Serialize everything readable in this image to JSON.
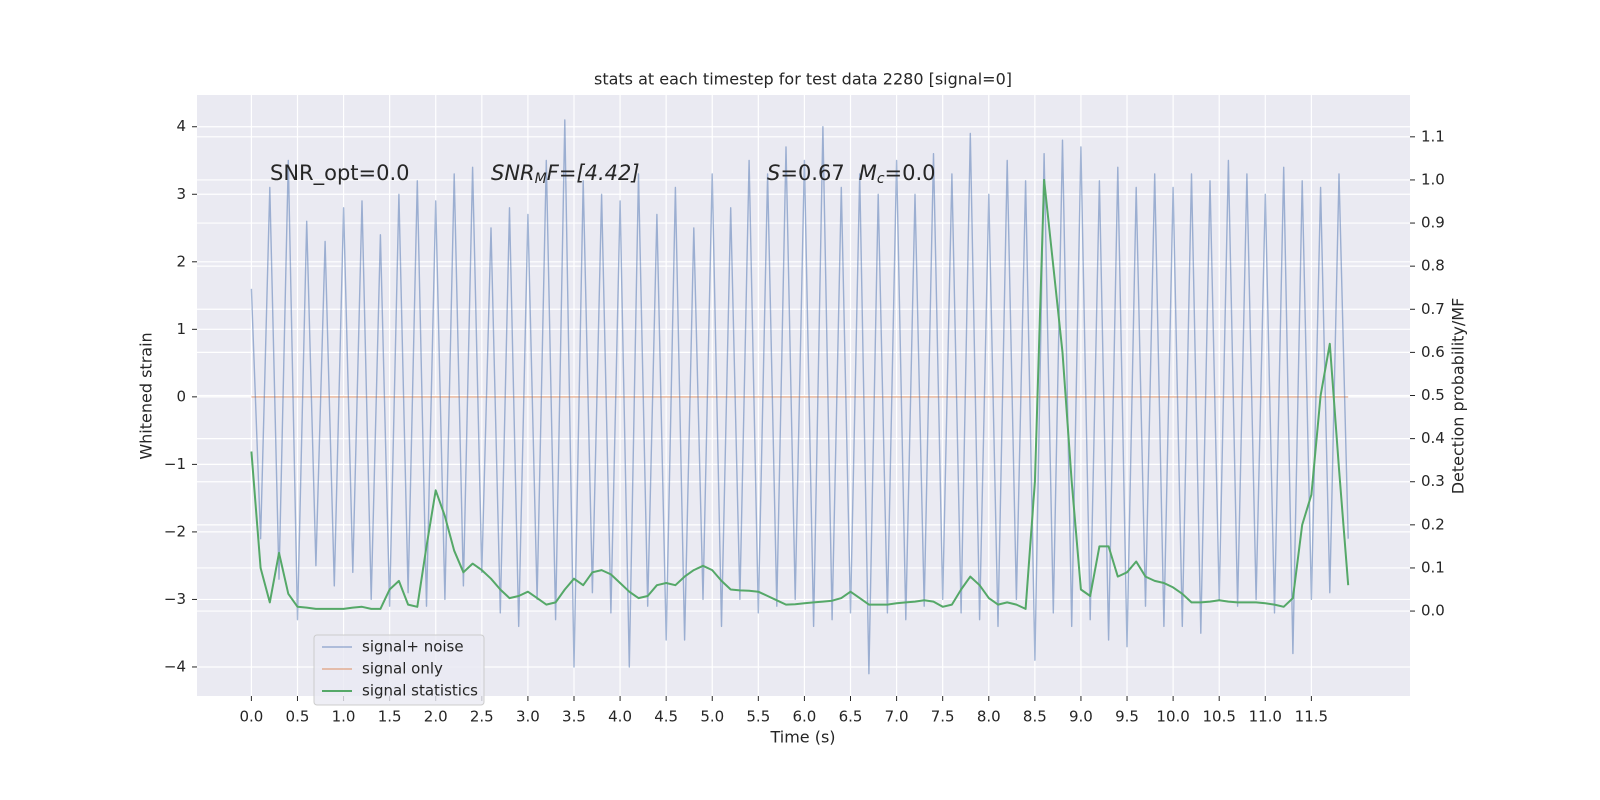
{
  "chart_data": {
    "type": "line",
    "title": "stats at each timestep for test data 2280 [signal=0]",
    "xlabel": "Time (s)",
    "ylabel": "Whitened strain",
    "y2label": "Detection probability/MF",
    "annotations": [
      [
        "SNR_opt=0.0"
      ],
      [
        "SNR",
        "M",
        "F=[4.42]"
      ],
      [
        "S",
        "=0.67",
        "M",
        "c",
        "=0.0"
      ]
    ],
    "background": "#eaeaf2",
    "grid": true,
    "legend": "lower left",
    "xlim": [
      -0.59,
      12.57
    ],
    "ylim": [
      -4.43,
      4.47
    ],
    "y2lim": [
      -0.197,
      1.197
    ],
    "xticks": [
      {
        "value": 0,
        "label": "0.0"
      },
      0.5,
      {
        "value": 1,
        "label": "1.0"
      },
      1.5,
      {
        "value": 2,
        "label": "2.0"
      },
      2.5,
      {
        "value": 3,
        "label": "3.0"
      },
      3.5,
      {
        "value": 4,
        "label": "4.0"
      },
      4.5,
      {
        "value": 5,
        "label": "5.0"
      },
      5.5,
      {
        "value": 6,
        "label": "6.0"
      },
      6.5,
      {
        "value": 7,
        "label": "7.0"
      },
      7.5,
      {
        "value": 8,
        "label": "8.0"
      },
      8.5,
      {
        "value": 9,
        "label": "9.0"
      },
      9.5,
      {
        "value": 10,
        "label": "10.0"
      },
      10.5,
      {
        "value": 11,
        "label": "11.0"
      },
      11.5
    ],
    "yticks": [
      {
        "value": -4,
        "label": "−4"
      },
      {
        "value": -3,
        "label": "−3"
      },
      {
        "value": -2,
        "label": "−2"
      },
      {
        "value": -1,
        "label": "−1"
      },
      0,
      1,
      2,
      3,
      4
    ],
    "y2ticks": [
      {
        "value": 0,
        "label": "0.0"
      },
      0.1,
      0.2,
      0.3,
      0.4,
      0.5,
      0.6,
      0.7,
      0.8,
      0.9,
      {
        "value": 1,
        "label": "1.0"
      },
      1.1
    ],
    "x": [
      0.0,
      0.1,
      0.2,
      0.3,
      0.4,
      0.5,
      0.6,
      0.7,
      0.8,
      0.9,
      1.0,
      1.1,
      1.2,
      1.3,
      1.4,
      1.5,
      1.6,
      1.7,
      1.8,
      1.9,
      2.0,
      2.1,
      2.2,
      2.3,
      2.4,
      2.5,
      2.6,
      2.7,
      2.8,
      2.9,
      3.0,
      3.1,
      3.2,
      3.3,
      3.4,
      3.5,
      3.6,
      3.7,
      3.8,
      3.9,
      4.0,
      4.1,
      4.2,
      4.3,
      4.4,
      4.5,
      4.6,
      4.7,
      4.8,
      4.9,
      5.0,
      5.1,
      5.2,
      5.3,
      5.4,
      5.5,
      5.6,
      5.7,
      5.8,
      5.9,
      6.0,
      6.1,
      6.2,
      6.3,
      6.4,
      6.5,
      6.6,
      6.7,
      6.8,
      6.9,
      7.0,
      7.1,
      7.2,
      7.3,
      7.4,
      7.5,
      7.6,
      7.7,
      7.8,
      7.9,
      8.0,
      8.1,
      8.2,
      8.3,
      8.4,
      8.5,
      8.6,
      8.7,
      8.8,
      8.9,
      9.0,
      9.1,
      9.2,
      9.3,
      9.4,
      9.5,
      9.6,
      9.7,
      9.8,
      9.9,
      10.0,
      10.1,
      10.2,
      10.3,
      10.4,
      10.5,
      10.6,
      10.7,
      10.8,
      10.9,
      11.0,
      11.1,
      11.2,
      11.3,
      11.4,
      11.5,
      11.6,
      11.7,
      11.8,
      11.9
    ],
    "series": [
      {
        "name": "signal+ noise",
        "color": "#4c72b0",
        "values": [
          1.6,
          -2.1,
          3.1,
          -2.7,
          3.5,
          -3.3,
          2.6,
          -2.5,
          2.3,
          -2.8,
          2.8,
          -2.6,
          2.9,
          -3.0,
          2.4,
          -3.1,
          3.0,
          -2.9,
          3.2,
          -3.1,
          2.9,
          -3.0,
          3.3,
          -2.8,
          3.4,
          -2.6,
          2.5,
          -3.2,
          2.8,
          -3.4,
          2.7,
          -3.0,
          3.5,
          -3.3,
          4.1,
          -4.0,
          3.2,
          -2.9,
          3.0,
          -3.2,
          2.9,
          -4.0,
          3.3,
          -3.1,
          2.7,
          -3.6,
          3.1,
          -3.6,
          2.5,
          -3.0,
          3.3,
          -3.4,
          2.8,
          -3.0,
          3.5,
          -3.2,
          3.3,
          -3.1,
          3.7,
          -3.0,
          3.5,
          -3.4,
          4.0,
          -3.3,
          3.1,
          -3.2,
          3.3,
          -4.1,
          3.0,
          -3.2,
          3.5,
          -3.3,
          3.0,
          -3.1,
          3.6,
          -3.0,
          3.3,
          -3.2,
          3.9,
          -3.3,
          3.0,
          -3.4,
          3.5,
          -3.0,
          3.2,
          -3.9,
          3.6,
          -3.2,
          3.8,
          -3.4,
          3.7,
          -3.3,
          3.2,
          -3.6,
          3.4,
          -3.7,
          3.1,
          -3.1,
          3.3,
          -3.4,
          3.1,
          -3.4,
          3.3,
          -3.5,
          3.2,
          -3.0,
          3.5,
          -3.1,
          3.3,
          -3.0,
          3.0,
          -3.2,
          3.4,
          -3.8,
          3.2,
          -3.0,
          3.1,
          -2.9,
          3.3,
          -2.1
        ]
      },
      {
        "name": "signal only",
        "color": "#dd8452",
        "values": [
          0,
          0,
          0,
          0,
          0,
          0,
          0,
          0,
          0,
          0,
          0,
          0,
          0,
          0,
          0,
          0,
          0,
          0,
          0,
          0,
          0,
          0,
          0,
          0,
          0,
          0,
          0,
          0,
          0,
          0,
          0,
          0,
          0,
          0,
          0,
          0,
          0,
          0,
          0,
          0,
          0,
          0,
          0,
          0,
          0,
          0,
          0,
          0,
          0,
          0,
          0,
          0,
          0,
          0,
          0,
          0,
          0,
          0,
          0,
          0,
          0,
          0,
          0,
          0,
          0,
          0,
          0,
          0,
          0,
          0,
          0,
          0,
          0,
          0,
          0,
          0,
          0,
          0,
          0,
          0,
          0,
          0,
          0,
          0,
          0,
          0,
          0,
          0,
          0,
          0,
          0,
          0,
          0,
          0,
          0,
          0,
          0,
          0,
          0,
          0,
          0,
          0,
          0,
          0,
          0,
          0,
          0,
          0,
          0,
          0,
          0,
          0,
          0,
          0,
          0,
          0,
          0,
          0,
          0,
          0
        ]
      },
      {
        "name": "signal statistics",
        "color": "#55a868",
        "axis": "y2",
        "values": [
          0.37,
          0.1,
          0.02,
          0.135,
          0.04,
          0.01,
          0.008,
          0.005,
          0.005,
          0.005,
          0.005,
          0.008,
          0.01,
          0.005,
          0.005,
          0.05,
          0.07,
          0.015,
          0.01,
          0.15,
          0.28,
          0.22,
          0.14,
          0.09,
          0.11,
          0.095,
          0.075,
          0.05,
          0.03,
          0.035,
          0.045,
          0.03,
          0.015,
          0.02,
          0.05,
          0.075,
          0.06,
          0.09,
          0.095,
          0.085,
          0.065,
          0.045,
          0.03,
          0.035,
          0.06,
          0.065,
          0.06,
          0.08,
          0.095,
          0.105,
          0.095,
          0.07,
          0.05,
          0.048,
          0.047,
          0.045,
          0.035,
          0.025,
          0.015,
          0.016,
          0.018,
          0.02,
          0.022,
          0.024,
          0.03,
          0.045,
          0.03,
          0.015,
          0.015,
          0.015,
          0.018,
          0.02,
          0.022,
          0.025,
          0.022,
          0.01,
          0.015,
          0.05,
          0.08,
          0.06,
          0.03,
          0.015,
          0.02,
          0.015,
          0.005,
          0.3,
          1.0,
          0.8,
          0.6,
          0.3,
          0.05,
          0.035,
          0.15,
          0.15,
          0.08,
          0.09,
          0.115,
          0.08,
          0.07,
          0.065,
          0.055,
          0.04,
          0.02,
          0.02,
          0.022,
          0.025,
          0.022,
          0.02,
          0.02,
          0.02,
          0.018,
          0.015,
          0.01,
          0.03,
          0.2,
          0.27,
          0.5,
          0.62,
          0.33,
          0.06
        ]
      }
    ]
  }
}
